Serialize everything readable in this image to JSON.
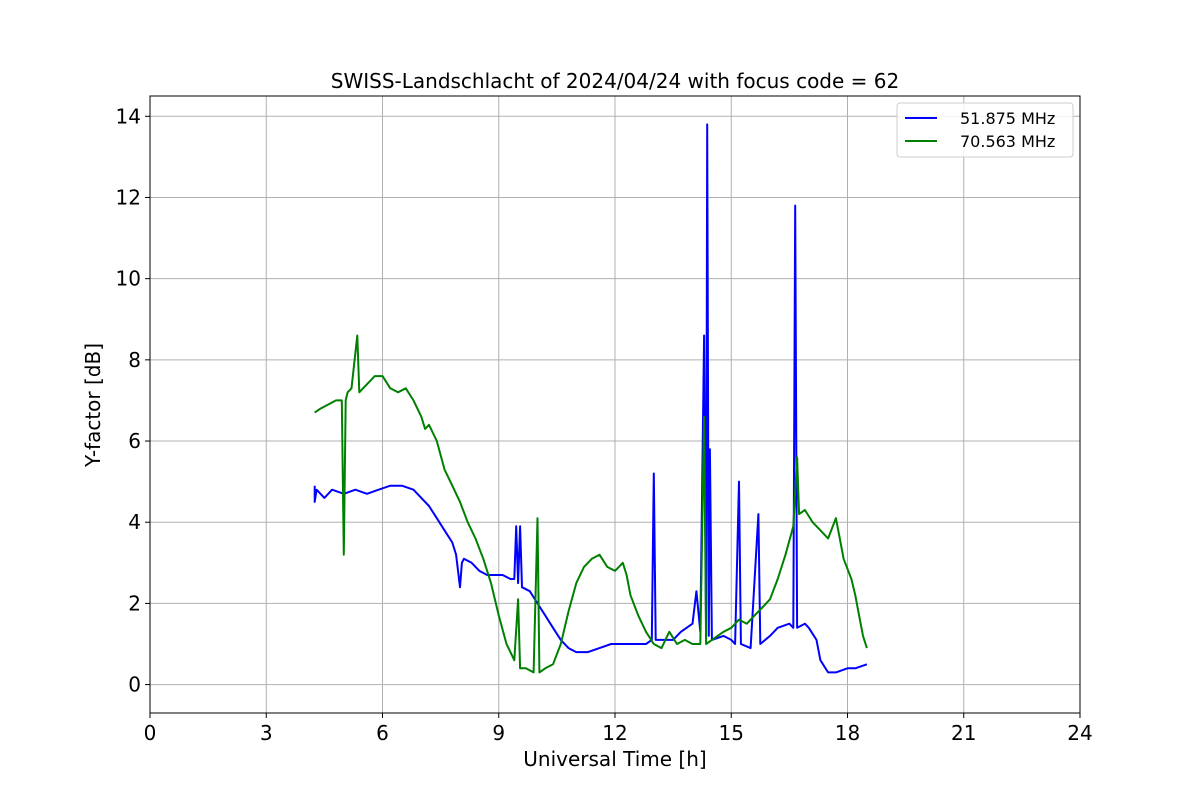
{
  "chart_data": {
    "type": "line",
    "title": "SWISS-Landschlacht of 2024/04/24 with focus code = 62",
    "xlabel": "Universal Time [h]",
    "ylabel": "Y-factor [dB]",
    "xlim": [
      0,
      24
    ],
    "ylim": [
      -0.7,
      14.5
    ],
    "xticks": [
      0,
      3,
      6,
      9,
      12,
      15,
      18,
      21,
      24
    ],
    "yticks": [
      0,
      2,
      4,
      6,
      8,
      10,
      12,
      14
    ],
    "grid": true,
    "legend_position": "top-right",
    "series": [
      {
        "name": "51.875 MHz",
        "color": "#0000ff",
        "points": [
          [
            4.25,
            4.9
          ],
          [
            4.25,
            4.5
          ],
          [
            4.3,
            4.8
          ],
          [
            4.5,
            4.6
          ],
          [
            4.7,
            4.8
          ],
          [
            5.0,
            4.7
          ],
          [
            5.3,
            4.8
          ],
          [
            5.6,
            4.7
          ],
          [
            5.9,
            4.8
          ],
          [
            6.2,
            4.9
          ],
          [
            6.5,
            4.9
          ],
          [
            6.8,
            4.8
          ],
          [
            7.0,
            4.6
          ],
          [
            7.2,
            4.4
          ],
          [
            7.4,
            4.1
          ],
          [
            7.6,
            3.8
          ],
          [
            7.8,
            3.5
          ],
          [
            7.9,
            3.2
          ],
          [
            8.0,
            2.4
          ],
          [
            8.05,
            3.0
          ],
          [
            8.1,
            3.1
          ],
          [
            8.3,
            3.0
          ],
          [
            8.5,
            2.8
          ],
          [
            8.7,
            2.7
          ],
          [
            8.9,
            2.7
          ],
          [
            9.1,
            2.7
          ],
          [
            9.3,
            2.6
          ],
          [
            9.4,
            2.6
          ],
          [
            9.45,
            3.9
          ],
          [
            9.5,
            2.5
          ],
          [
            9.55,
            3.9
          ],
          [
            9.6,
            2.4
          ],
          [
            9.8,
            2.3
          ],
          [
            10.0,
            2.0
          ],
          [
            10.2,
            1.7
          ],
          [
            10.4,
            1.4
          ],
          [
            10.6,
            1.1
          ],
          [
            10.8,
            0.9
          ],
          [
            11.0,
            0.8
          ],
          [
            11.3,
            0.8
          ],
          [
            11.6,
            0.9
          ],
          [
            11.9,
            1.0
          ],
          [
            12.2,
            1.0
          ],
          [
            12.5,
            1.0
          ],
          [
            12.8,
            1.0
          ],
          [
            12.95,
            1.1
          ],
          [
            13.0,
            5.2
          ],
          [
            13.05,
            1.1
          ],
          [
            13.2,
            1.1
          ],
          [
            13.5,
            1.1
          ],
          [
            13.7,
            1.3
          ],
          [
            14.0,
            1.5
          ],
          [
            14.1,
            2.3
          ],
          [
            14.2,
            1.3
          ],
          [
            14.3,
            8.6
          ],
          [
            14.35,
            1.2
          ],
          [
            14.38,
            13.8
          ],
          [
            14.42,
            1.2
          ],
          [
            14.45,
            5.8
          ],
          [
            14.5,
            1.1
          ],
          [
            14.8,
            1.2
          ],
          [
            15.0,
            1.1
          ],
          [
            15.1,
            1.0
          ],
          [
            15.2,
            5.0
          ],
          [
            15.25,
            1.0
          ],
          [
            15.5,
            0.9
          ],
          [
            15.7,
            4.2
          ],
          [
            15.75,
            1.0
          ],
          [
            16.0,
            1.2
          ],
          [
            16.2,
            1.4
          ],
          [
            16.5,
            1.5
          ],
          [
            16.6,
            1.4
          ],
          [
            16.65,
            11.8
          ],
          [
            16.7,
            1.4
          ],
          [
            16.9,
            1.5
          ],
          [
            17.0,
            1.4
          ],
          [
            17.2,
            1.1
          ],
          [
            17.3,
            0.6
          ],
          [
            17.5,
            0.3
          ],
          [
            17.7,
            0.3
          ],
          [
            18.0,
            0.4
          ],
          [
            18.2,
            0.4
          ],
          [
            18.5,
            0.5
          ]
        ]
      },
      {
        "name": "70.563 MHz",
        "color": "#008000",
        "points": [
          [
            4.25,
            6.7
          ],
          [
            4.4,
            6.8
          ],
          [
            4.6,
            6.9
          ],
          [
            4.8,
            7.0
          ],
          [
            4.95,
            7.0
          ],
          [
            5.0,
            3.2
          ],
          [
            5.05,
            7.0
          ],
          [
            5.1,
            7.2
          ],
          [
            5.2,
            7.3
          ],
          [
            5.35,
            8.6
          ],
          [
            5.4,
            7.2
          ],
          [
            5.6,
            7.4
          ],
          [
            5.8,
            7.6
          ],
          [
            6.0,
            7.6
          ],
          [
            6.2,
            7.3
          ],
          [
            6.4,
            7.2
          ],
          [
            6.6,
            7.3
          ],
          [
            6.8,
            7.0
          ],
          [
            7.0,
            6.6
          ],
          [
            7.1,
            6.3
          ],
          [
            7.2,
            6.4
          ],
          [
            7.4,
            6.0
          ],
          [
            7.6,
            5.3
          ],
          [
            7.8,
            4.9
          ],
          [
            8.0,
            4.5
          ],
          [
            8.2,
            4.0
          ],
          [
            8.4,
            3.6
          ],
          [
            8.6,
            3.1
          ],
          [
            8.8,
            2.5
          ],
          [
            9.0,
            1.7
          ],
          [
            9.2,
            1.0
          ],
          [
            9.4,
            0.6
          ],
          [
            9.5,
            2.1
          ],
          [
            9.55,
            0.4
          ],
          [
            9.7,
            0.4
          ],
          [
            9.9,
            0.3
          ],
          [
            10.0,
            4.1
          ],
          [
            10.05,
            0.3
          ],
          [
            10.2,
            0.4
          ],
          [
            10.4,
            0.5
          ],
          [
            10.6,
            1.0
          ],
          [
            10.8,
            1.8
          ],
          [
            11.0,
            2.5
          ],
          [
            11.2,
            2.9
          ],
          [
            11.4,
            3.1
          ],
          [
            11.6,
            3.2
          ],
          [
            11.8,
            2.9
          ],
          [
            12.0,
            2.8
          ],
          [
            12.2,
            3.0
          ],
          [
            12.3,
            2.7
          ],
          [
            12.4,
            2.2
          ],
          [
            12.6,
            1.7
          ],
          [
            12.8,
            1.3
          ],
          [
            13.0,
            1.0
          ],
          [
            13.2,
            0.9
          ],
          [
            13.4,
            1.3
          ],
          [
            13.6,
            1.0
          ],
          [
            13.8,
            1.1
          ],
          [
            14.0,
            1.0
          ],
          [
            14.2,
            1.0
          ],
          [
            14.3,
            6.6
          ],
          [
            14.35,
            1.0
          ],
          [
            14.5,
            1.1
          ],
          [
            14.8,
            1.3
          ],
          [
            15.0,
            1.4
          ],
          [
            15.2,
            1.6
          ],
          [
            15.4,
            1.5
          ],
          [
            15.6,
            1.7
          ],
          [
            15.8,
            1.9
          ],
          [
            16.0,
            2.1
          ],
          [
            16.2,
            2.6
          ],
          [
            16.4,
            3.2
          ],
          [
            16.6,
            3.9
          ],
          [
            16.7,
            5.6
          ],
          [
            16.75,
            4.2
          ],
          [
            16.9,
            4.3
          ],
          [
            17.1,
            4.0
          ],
          [
            17.3,
            3.8
          ],
          [
            17.5,
            3.6
          ],
          [
            17.7,
            4.1
          ],
          [
            17.8,
            3.6
          ],
          [
            17.9,
            3.1
          ],
          [
            18.1,
            2.6
          ],
          [
            18.2,
            2.2
          ],
          [
            18.3,
            1.7
          ],
          [
            18.4,
            1.2
          ],
          [
            18.5,
            0.9
          ]
        ]
      }
    ]
  }
}
